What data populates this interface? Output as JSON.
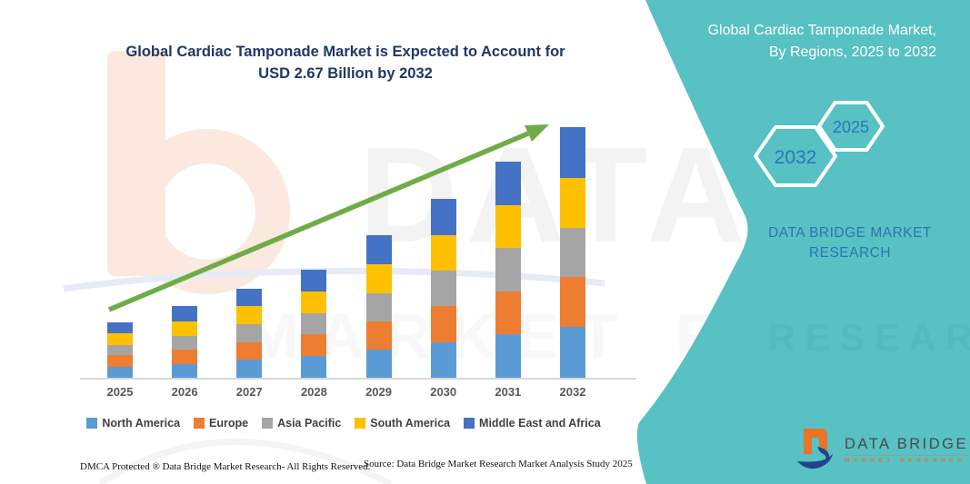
{
  "title": {
    "line1": "Global Cardiac Tamponade Market is Expected to Account for",
    "line2": "USD 2.67 Billion by 2032"
  },
  "side_panel": {
    "heading_line1": "Global Cardiac Tamponade Market,",
    "heading_line2": "By Regions, 2025 to 2032",
    "hexagon_back_label": "2032",
    "hexagon_front_label": "2025",
    "caption_line1": "DATA BRIDGE MARKET",
    "caption_line2": "RESEARCH",
    "panel_color": "#57C1C3"
  },
  "logo": {
    "name": "DATA BRIDGE",
    "subtitle": "MARKET RESEARCH",
    "orange": "#E87424",
    "navy": "#24418E"
  },
  "footer": {
    "dmca": "DMCA Protected ® Data Bridge Market Research-  All Rights Reserved.",
    "source": "Source: Data Bridge Market Research  Market Analysis Study 2025"
  },
  "watermark": {
    "text1": "DATA BRIDGE",
    "text2": "MARKET RESEARCH"
  },
  "chart_data": {
    "type": "bar",
    "stacked": true,
    "title": "Global Cardiac Tamponade Market is Expected to Account for USD 2.67 Billion by 2032",
    "unit": "USD Billion",
    "categories": [
      "2025",
      "2026",
      "2027",
      "2028",
      "2029",
      "2030",
      "2031",
      "2032"
    ],
    "series": [
      {
        "name": "North America",
        "color": "#5B9BD5",
        "values": [
          0.12,
          0.15,
          0.19,
          0.23,
          0.3,
          0.38,
          0.46,
          0.54
        ]
      },
      {
        "name": "Europe",
        "color": "#ED7D31",
        "values": [
          0.12,
          0.15,
          0.19,
          0.23,
          0.3,
          0.38,
          0.46,
          0.53
        ]
      },
      {
        "name": "Asia Pacific",
        "color": "#A5A5A5",
        "values": [
          0.11,
          0.15,
          0.19,
          0.23,
          0.3,
          0.38,
          0.46,
          0.53
        ]
      },
      {
        "name": "South America",
        "color": "#FFC000",
        "values": [
          0.12,
          0.15,
          0.19,
          0.23,
          0.31,
          0.38,
          0.46,
          0.53
        ]
      },
      {
        "name": "Middle East and Africa",
        "color": "#4472C4",
        "values": [
          0.12,
          0.16,
          0.19,
          0.23,
          0.31,
          0.39,
          0.46,
          0.54
        ]
      }
    ],
    "totals": [
      0.59,
      0.76,
      0.95,
      1.15,
      1.52,
      1.91,
      2.3,
      2.67
    ],
    "ylim": [
      0,
      2.8
    ],
    "gridlines": false,
    "y_axis_visible": false,
    "legend_position": "bottom",
    "annotations": [
      "green upward trend arrow from 2025 toward 2032"
    ],
    "arrow_color": "#6FAC47"
  }
}
